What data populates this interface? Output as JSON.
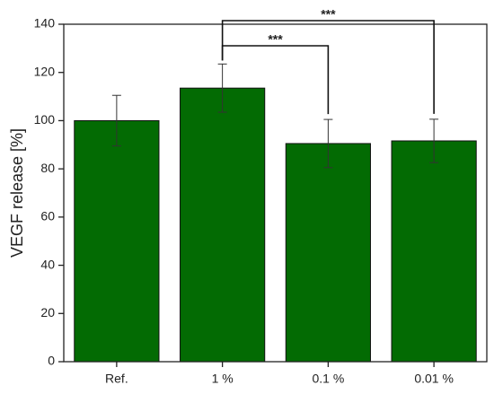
{
  "chart_data": {
    "type": "bar",
    "y_label": "VEGF release [%]",
    "categories": [
      "Ref.",
      "1 %",
      "0.1 %",
      "0.01 %"
    ],
    "values": [
      100,
      113.5,
      90.5,
      91.6
    ],
    "errors": [
      10.5,
      10,
      10,
      9
    ],
    "color": "#036b03",
    "ylim": [
      0,
      140
    ],
    "yticks": [
      0,
      20,
      40,
      60,
      80,
      100,
      120,
      140
    ],
    "brackets": [
      {
        "from": 1,
        "to": 3,
        "label": "***"
      },
      {
        "from": 1,
        "to": 2,
        "label": "***"
      }
    ]
  }
}
